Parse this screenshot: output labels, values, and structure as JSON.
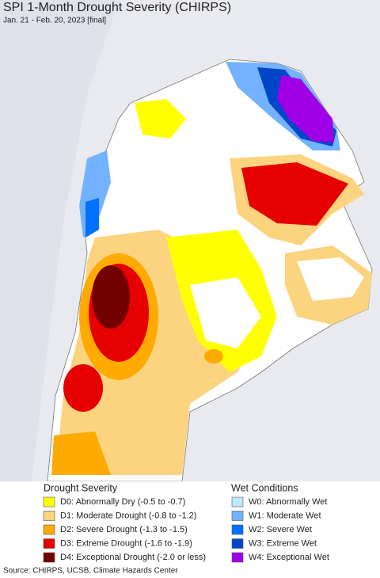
{
  "header": {
    "title": "SPI 1-Month Drought Severity (CHIRPS)",
    "subtitle": "Jan. 21 - Feb. 20, 2023 [final]"
  },
  "legend": {
    "drought": {
      "title": "Drought Severity",
      "items": [
        {
          "label": "D0: Abnormally Dry (-0.5 to -0.7)",
          "color": "#ffff00"
        },
        {
          "label": "D1: Moderate Drought (-0.8 to -1.2)",
          "color": "#fcd37f"
        },
        {
          "label": "D2: Severe Drought (-1.3 to -1.5)",
          "color": "#ffaa00"
        },
        {
          "label": "D3: Extreme Drought (-1.6 to -1.9)",
          "color": "#e60000"
        },
        {
          "label": "D4: Exceptional Drought (-2.0 or less)",
          "color": "#730000"
        }
      ]
    },
    "wet": {
      "title": "Wet Conditions",
      "items": [
        {
          "label": "W0: Abnormally Wet",
          "color": "#bee8ff"
        },
        {
          "label": "W1: Moderate Wet",
          "color": "#73b2ff"
        },
        {
          "label": "W2: Severe Wet",
          "color": "#0070ff"
        },
        {
          "label": "W3: Extreme Wet",
          "color": "#0046c8"
        },
        {
          "label": "W4: Exceptional Wet",
          "color": "#a000e6"
        }
      ]
    }
  },
  "source": "Source: CHIRPS, UCSB, Climate Hazards Center"
}
